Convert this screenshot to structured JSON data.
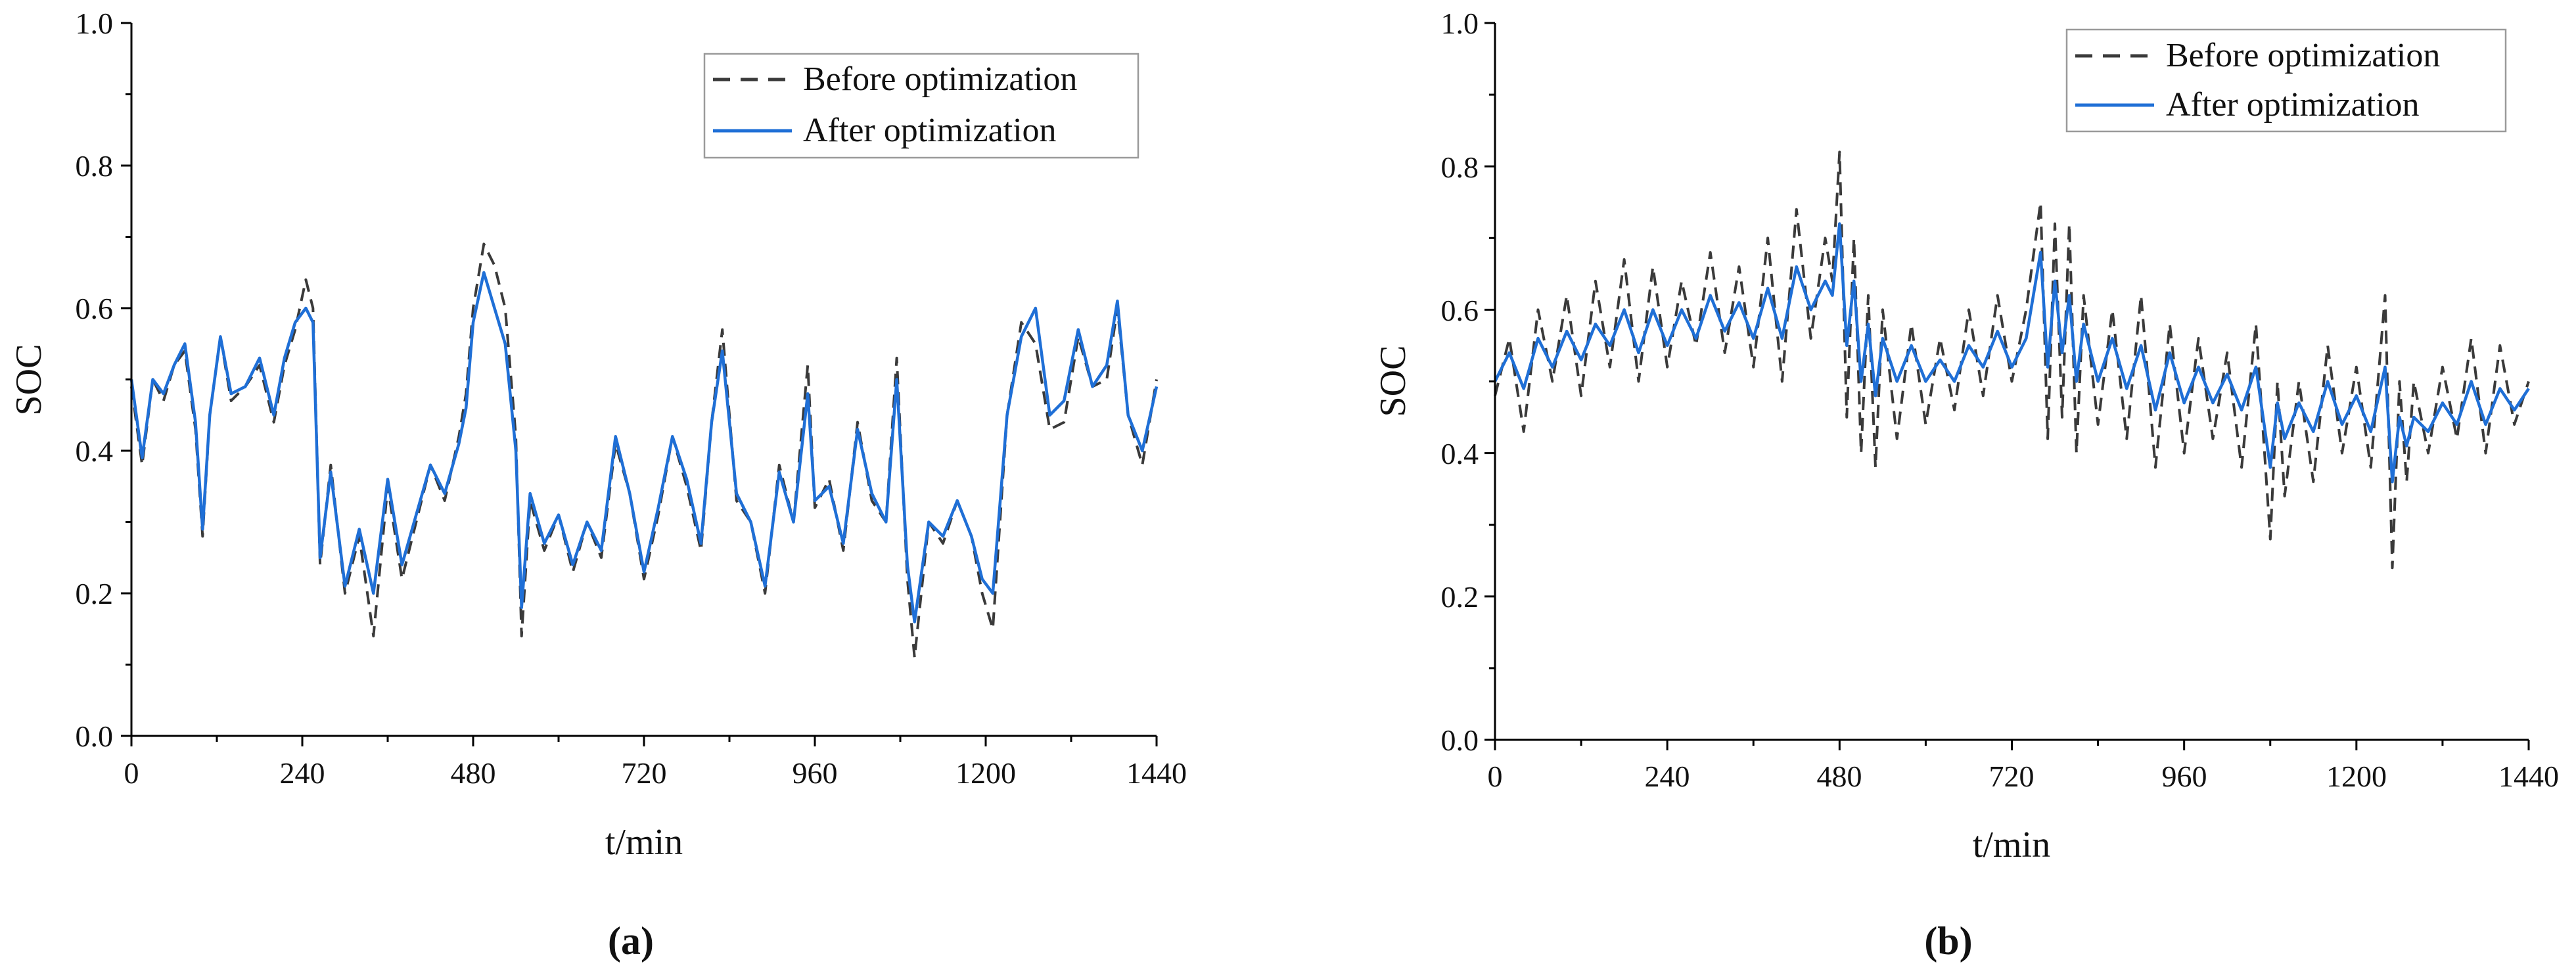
{
  "chart_data": [
    {
      "panel_label": "(a)",
      "type": "line",
      "xlabel": "t/min",
      "ylabel": "SOC",
      "xlim": [
        0,
        1440
      ],
      "ylim": [
        0.0,
        1.0
      ],
      "xticks": [
        "0",
        "240",
        "480",
        "720",
        "960",
        "1200",
        "1440"
      ],
      "yticks": [
        "0.0",
        "0.2",
        "0.4",
        "0.6",
        "0.8",
        "1.0"
      ],
      "legend_position": "top-right",
      "series": [
        {
          "name": "Before optimization",
          "color": "#3a3a3a",
          "style": "dashed",
          "x": [
            0,
            15,
            30,
            45,
            60,
            75,
            90,
            100,
            110,
            125,
            140,
            160,
            180,
            200,
            215,
            230,
            245,
            255,
            265,
            280,
            300,
            320,
            340,
            360,
            380,
            400,
            420,
            440,
            460,
            470,
            480,
            495,
            510,
            525,
            540,
            548,
            560,
            580,
            600,
            620,
            640,
            660,
            680,
            700,
            720,
            740,
            760,
            780,
            800,
            815,
            830,
            850,
            870,
            890,
            910,
            930,
            950,
            960,
            980,
            1000,
            1020,
            1040,
            1060,
            1075,
            1090,
            1100,
            1120,
            1140,
            1160,
            1180,
            1195,
            1210,
            1230,
            1250,
            1270,
            1290,
            1310,
            1330,
            1350,
            1370,
            1385,
            1400,
            1420,
            1440
          ],
          "values": [
            0.49,
            0.38,
            0.5,
            0.47,
            0.52,
            0.54,
            0.43,
            0.28,
            0.45,
            0.56,
            0.47,
            0.49,
            0.52,
            0.44,
            0.52,
            0.57,
            0.64,
            0.6,
            0.24,
            0.38,
            0.2,
            0.28,
            0.14,
            0.35,
            0.22,
            0.3,
            0.38,
            0.33,
            0.42,
            0.48,
            0.6,
            0.69,
            0.66,
            0.6,
            0.42,
            0.14,
            0.33,
            0.26,
            0.31,
            0.23,
            0.3,
            0.25,
            0.41,
            0.34,
            0.22,
            0.31,
            0.42,
            0.35,
            0.26,
            0.44,
            0.57,
            0.33,
            0.3,
            0.2,
            0.38,
            0.3,
            0.52,
            0.32,
            0.36,
            0.26,
            0.44,
            0.33,
            0.3,
            0.53,
            0.22,
            0.11,
            0.3,
            0.27,
            0.33,
            0.28,
            0.2,
            0.15,
            0.45,
            0.58,
            0.55,
            0.43,
            0.44,
            0.56,
            0.49,
            0.5,
            0.6,
            0.45,
            0.38,
            0.5
          ]
        },
        {
          "name": "After optimization",
          "color": "#1f6fd6",
          "style": "solid",
          "x": [
            0,
            15,
            30,
            45,
            60,
            75,
            90,
            100,
            110,
            125,
            140,
            160,
            180,
            200,
            215,
            230,
            245,
            255,
            265,
            280,
            300,
            320,
            340,
            360,
            380,
            400,
            420,
            440,
            460,
            470,
            480,
            495,
            510,
            525,
            540,
            548,
            560,
            580,
            600,
            620,
            640,
            660,
            680,
            700,
            720,
            740,
            760,
            780,
            800,
            815,
            830,
            850,
            870,
            890,
            910,
            930,
            950,
            960,
            980,
            1000,
            1020,
            1040,
            1060,
            1075,
            1090,
            1100,
            1120,
            1140,
            1160,
            1180,
            1195,
            1210,
            1230,
            1250,
            1270,
            1290,
            1310,
            1330,
            1350,
            1370,
            1385,
            1400,
            1420,
            1440
          ],
          "values": [
            0.5,
            0.39,
            0.5,
            0.48,
            0.52,
            0.55,
            0.44,
            0.29,
            0.45,
            0.56,
            0.48,
            0.49,
            0.53,
            0.45,
            0.53,
            0.58,
            0.6,
            0.58,
            0.25,
            0.37,
            0.21,
            0.29,
            0.2,
            0.36,
            0.24,
            0.31,
            0.38,
            0.34,
            0.41,
            0.46,
            0.58,
            0.65,
            0.6,
            0.55,
            0.4,
            0.18,
            0.34,
            0.27,
            0.31,
            0.24,
            0.3,
            0.26,
            0.42,
            0.34,
            0.23,
            0.32,
            0.42,
            0.36,
            0.27,
            0.44,
            0.54,
            0.34,
            0.3,
            0.21,
            0.37,
            0.3,
            0.48,
            0.33,
            0.35,
            0.27,
            0.43,
            0.34,
            0.3,
            0.5,
            0.24,
            0.16,
            0.3,
            0.28,
            0.33,
            0.28,
            0.22,
            0.2,
            0.45,
            0.56,
            0.6,
            0.45,
            0.47,
            0.57,
            0.49,
            0.52,
            0.61,
            0.45,
            0.4,
            0.49
          ]
        }
      ]
    },
    {
      "panel_label": "(b)",
      "type": "line",
      "xlabel": "t/min",
      "ylabel": "SOC",
      "xlim": [
        0,
        1440
      ],
      "ylim": [
        0.0,
        1.0
      ],
      "xticks": [
        "0",
        "240",
        "480",
        "720",
        "960",
        "1200",
        "1440"
      ],
      "yticks": [
        "0.0",
        "0.2",
        "0.4",
        "0.6",
        "0.8",
        "1.0"
      ],
      "legend_position": "top-right",
      "series": [
        {
          "name": "Before optimization",
          "color": "#3a3a3a",
          "style": "dashed",
          "x": [
            0,
            20,
            40,
            60,
            80,
            100,
            120,
            140,
            160,
            180,
            200,
            220,
            240,
            260,
            280,
            300,
            320,
            340,
            360,
            380,
            400,
            420,
            440,
            460,
            470,
            480,
            490,
            500,
            510,
            520,
            530,
            540,
            560,
            580,
            600,
            620,
            640,
            660,
            680,
            700,
            720,
            740,
            760,
            770,
            780,
            790,
            800,
            810,
            820,
            840,
            860,
            880,
            900,
            920,
            940,
            960,
            980,
            1000,
            1020,
            1040,
            1060,
            1080,
            1090,
            1100,
            1120,
            1140,
            1160,
            1180,
            1200,
            1220,
            1240,
            1250,
            1260,
            1270,
            1280,
            1300,
            1320,
            1340,
            1360,
            1380,
            1400,
            1420,
            1440
          ],
          "values": [
            0.48,
            0.56,
            0.43,
            0.6,
            0.5,
            0.62,
            0.48,
            0.64,
            0.52,
            0.67,
            0.5,
            0.66,
            0.52,
            0.64,
            0.55,
            0.68,
            0.54,
            0.66,
            0.52,
            0.7,
            0.5,
            0.74,
            0.56,
            0.7,
            0.64,
            0.82,
            0.45,
            0.7,
            0.4,
            0.62,
            0.38,
            0.6,
            0.42,
            0.58,
            0.44,
            0.56,
            0.46,
            0.6,
            0.48,
            0.62,
            0.5,
            0.6,
            0.75,
            0.42,
            0.72,
            0.45,
            0.72,
            0.4,
            0.62,
            0.44,
            0.6,
            0.42,
            0.62,
            0.38,
            0.58,
            0.4,
            0.56,
            0.42,
            0.54,
            0.38,
            0.58,
            0.28,
            0.5,
            0.34,
            0.5,
            0.36,
            0.55,
            0.4,
            0.52,
            0.38,
            0.62,
            0.24,
            0.5,
            0.36,
            0.5,
            0.4,
            0.52,
            0.42,
            0.56,
            0.4,
            0.55,
            0.44,
            0.5
          ]
        },
        {
          "name": "After optimization",
          "color": "#1f6fd6",
          "style": "solid",
          "x": [
            0,
            20,
            40,
            60,
            80,
            100,
            120,
            140,
            160,
            180,
            200,
            220,
            240,
            260,
            280,
            300,
            320,
            340,
            360,
            380,
            400,
            420,
            440,
            460,
            470,
            480,
            490,
            500,
            510,
            520,
            530,
            540,
            560,
            580,
            600,
            620,
            640,
            660,
            680,
            700,
            720,
            740,
            760,
            770,
            780,
            790,
            800,
            810,
            820,
            840,
            860,
            880,
            900,
            920,
            940,
            960,
            980,
            1000,
            1020,
            1040,
            1060,
            1080,
            1090,
            1100,
            1120,
            1140,
            1160,
            1180,
            1200,
            1220,
            1240,
            1250,
            1260,
            1270,
            1280,
            1300,
            1320,
            1340,
            1360,
            1380,
            1400,
            1420,
            1440
          ],
          "values": [
            0.5,
            0.54,
            0.49,
            0.56,
            0.52,
            0.57,
            0.53,
            0.58,
            0.55,
            0.6,
            0.54,
            0.6,
            0.55,
            0.6,
            0.56,
            0.62,
            0.57,
            0.61,
            0.56,
            0.63,
            0.56,
            0.66,
            0.6,
            0.64,
            0.62,
            0.72,
            0.55,
            0.64,
            0.5,
            0.58,
            0.48,
            0.56,
            0.5,
            0.55,
            0.5,
            0.53,
            0.5,
            0.55,
            0.52,
            0.57,
            0.52,
            0.56,
            0.68,
            0.52,
            0.64,
            0.54,
            0.62,
            0.5,
            0.58,
            0.5,
            0.56,
            0.49,
            0.55,
            0.46,
            0.54,
            0.47,
            0.52,
            0.47,
            0.51,
            0.46,
            0.52,
            0.38,
            0.47,
            0.42,
            0.47,
            0.43,
            0.5,
            0.44,
            0.48,
            0.43,
            0.52,
            0.36,
            0.45,
            0.41,
            0.45,
            0.43,
            0.47,
            0.44,
            0.5,
            0.44,
            0.49,
            0.46,
            0.49
          ]
        }
      ]
    }
  ]
}
